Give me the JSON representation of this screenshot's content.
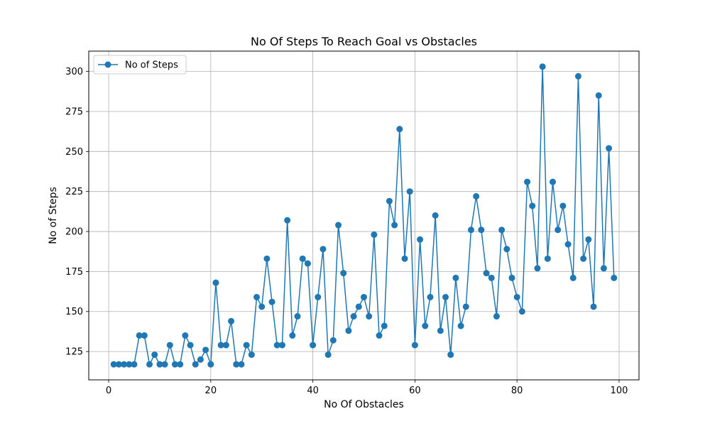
{
  "chart_data": {
    "type": "line",
    "title": "No Of Steps To Reach Goal vs Obstacles",
    "xlabel": "No Of Obstacles",
    "ylabel": "No of Steps",
    "xlim": [
      -3.9,
      103.9
    ],
    "ylim": [
      107.3,
      312.7
    ],
    "xticks": [
      0,
      20,
      40,
      60,
      80,
      100
    ],
    "yticks": [
      125,
      150,
      175,
      200,
      225,
      250,
      275,
      300
    ],
    "grid": true,
    "legend_position": "top-left",
    "series": [
      {
        "name": "No of Steps",
        "color": "#1f77b4",
        "marker": "circle",
        "x": [
          1,
          2,
          3,
          4,
          5,
          6,
          7,
          8,
          9,
          10,
          11,
          12,
          13,
          14,
          15,
          16,
          17,
          18,
          19,
          20,
          21,
          22,
          23,
          24,
          25,
          26,
          27,
          28,
          29,
          30,
          31,
          32,
          33,
          34,
          35,
          36,
          37,
          38,
          39,
          40,
          41,
          42,
          43,
          44,
          45,
          46,
          47,
          48,
          49,
          50,
          51,
          52,
          53,
          54,
          55,
          56,
          57,
          58,
          59,
          60,
          61,
          62,
          63,
          64,
          65,
          66,
          67,
          68,
          69,
          70,
          71,
          72,
          73,
          74,
          75,
          76,
          77,
          78,
          79,
          80,
          81,
          82,
          83,
          84,
          85,
          86,
          87,
          88,
          89,
          90,
          91,
          92,
          93,
          94,
          95,
          96,
          97,
          98,
          99
        ],
        "y": [
          117,
          117,
          117,
          117,
          117,
          135,
          135,
          117,
          123,
          117,
          117,
          129,
          117,
          117,
          135,
          129,
          117,
          120,
          126,
          117,
          168,
          129,
          129,
          144,
          117,
          117,
          129,
          123,
          159,
          153,
          183,
          156,
          129,
          129,
          207,
          135,
          147,
          183,
          180,
          129,
          159,
          189,
          123,
          132,
          204,
          174,
          138,
          147,
          153,
          159,
          147,
          198,
          135,
          141,
          219,
          204,
          264,
          183,
          225,
          129,
          195,
          141,
          159,
          210,
          138,
          159,
          123,
          171,
          141,
          153,
          201,
          222,
          201,
          174,
          171,
          147,
          201,
          189,
          171,
          159,
          150,
          231,
          216,
          177,
          303,
          183,
          231,
          201,
          216,
          192,
          171,
          297,
          183,
          195,
          153,
          285,
          177,
          252,
          171
        ]
      }
    ]
  }
}
